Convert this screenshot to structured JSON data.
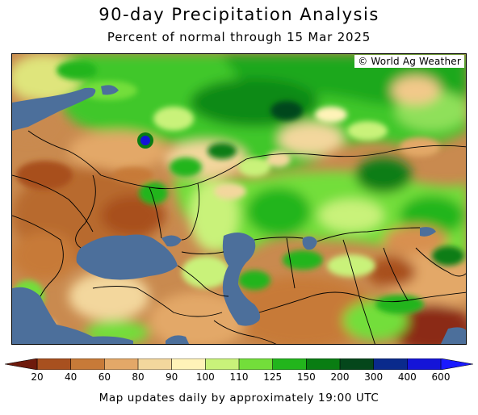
{
  "title": "90-day Precipitation Analysis",
  "subtitle": "Percent of normal through 15 Mar 2025",
  "credit": "© World Ag Weather",
  "legend": {
    "bins": [
      {
        "label": "20",
        "color": "#8b2a16"
      },
      {
        "label": "40",
        "color": "#a8501f"
      },
      {
        "label": "60",
        "color": "#c77a38"
      },
      {
        "label": "80",
        "color": "#e3a868"
      },
      {
        "label": "90",
        "color": "#f3d79d"
      },
      {
        "label": "100",
        "color": "#fff3b8"
      },
      {
        "label": "110",
        "color": "#c9f27a"
      },
      {
        "label": "125",
        "color": "#73de3a"
      },
      {
        "label": "150",
        "color": "#22b51c"
      },
      {
        "label": "200",
        "color": "#097d12"
      },
      {
        "label": "300",
        "color": "#04471b"
      },
      {
        "label": "400",
        "color": "#0a2a8c"
      },
      {
        "label": "600",
        "color": "#1414d8"
      }
    ],
    "under_color": "#6e1a0c",
    "over_color": "#1a1aff"
  },
  "map": {
    "water_color": "#4c6f9b",
    "region": "Black Sea, Caspian Sea and surrounding regions"
  },
  "footer": "Map updates daily by approximately 19:00 UTC"
}
